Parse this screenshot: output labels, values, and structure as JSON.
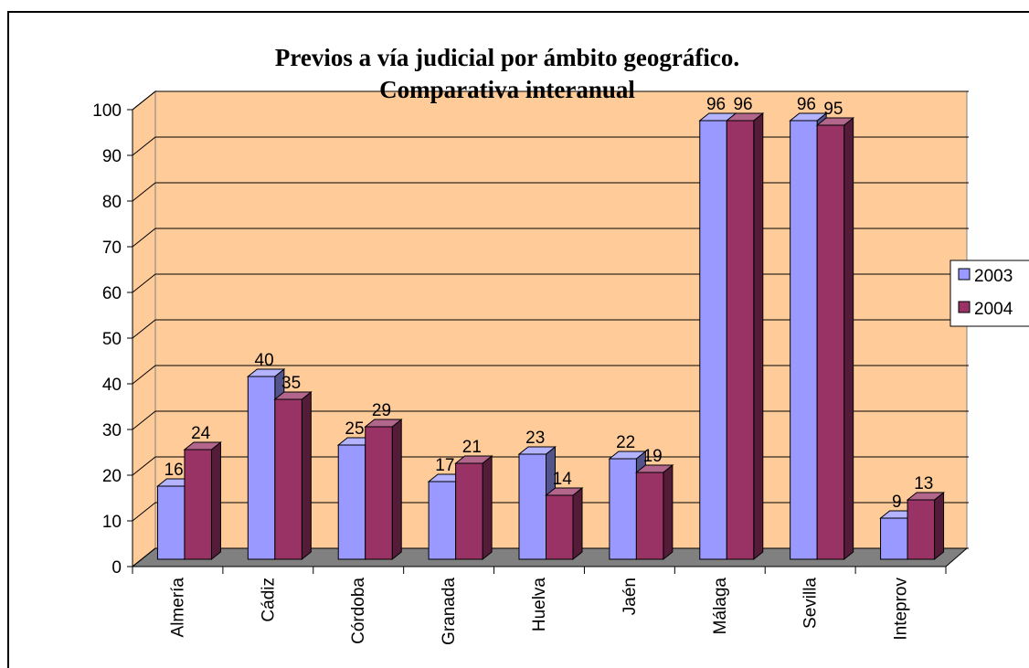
{
  "chart_data": {
    "type": "bar3d",
    "title": [
      "Previos a vía judicial por ámbito geográfico.",
      "Comparativa interanual"
    ],
    "categories": [
      "Almería",
      "Cádiz",
      "Córdoba",
      "Granada",
      "Huelva",
      "Jaén",
      "Málaga",
      "Sevilla",
      "Inteprov"
    ],
    "series": [
      {
        "name": "2003",
        "color": "#9999FF",
        "values": [
          16,
          40,
          25,
          17,
          23,
          22,
          96,
          96,
          9
        ]
      },
      {
        "name": "2004",
        "color": "#993366",
        "values": [
          24,
          35,
          29,
          21,
          14,
          19,
          96,
          95,
          13
        ]
      }
    ],
    "ylim": [
      0,
      100
    ],
    "yticks": [
      0,
      10,
      20,
      30,
      40,
      50,
      60,
      70,
      80,
      90,
      100
    ],
    "grid": true,
    "legend": "right"
  }
}
